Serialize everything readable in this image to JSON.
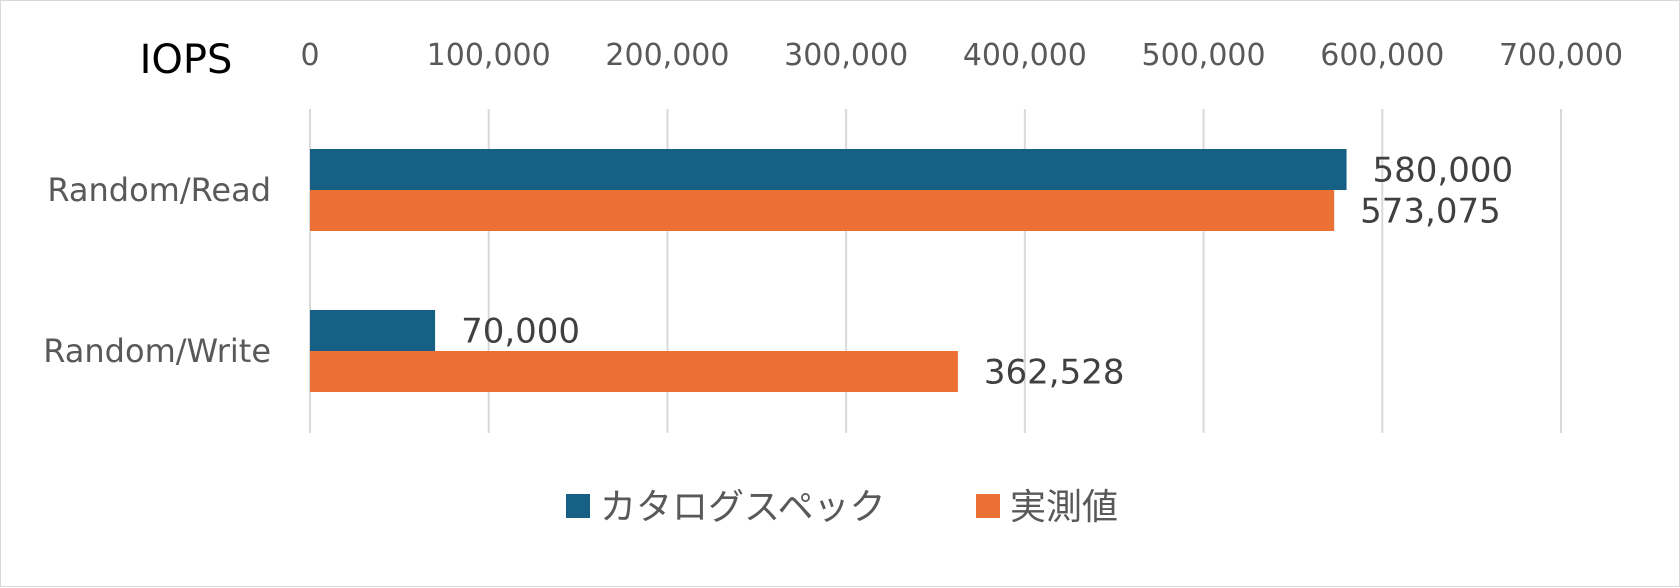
{
  "chart_data": {
    "type": "bar",
    "orientation": "horizontal",
    "title": "IOPS",
    "categories": [
      "Random/Read",
      "Random/Write"
    ],
    "series": [
      {
        "name": "カタログスペック",
        "color": "#176085",
        "values": [
          580000,
          70000
        ],
        "labels": [
          "580,000",
          "70,000"
        ]
      },
      {
        "name": "実測値",
        "color": "#EA7133",
        "values": [
          573075,
          362528
        ],
        "labels": [
          "573,075",
          "362,528"
        ]
      }
    ],
    "xlim": [
      0,
      700000
    ],
    "xticks": [
      0,
      100000,
      200000,
      300000,
      400000,
      500000,
      600000,
      700000
    ],
    "xtick_labels": [
      "0",
      "100,000",
      "200,000",
      "300,000",
      "400,000",
      "500,000",
      "600,000",
      "700,000"
    ],
    "axis_position": "top",
    "grid": true,
    "legend_position": "bottom"
  }
}
